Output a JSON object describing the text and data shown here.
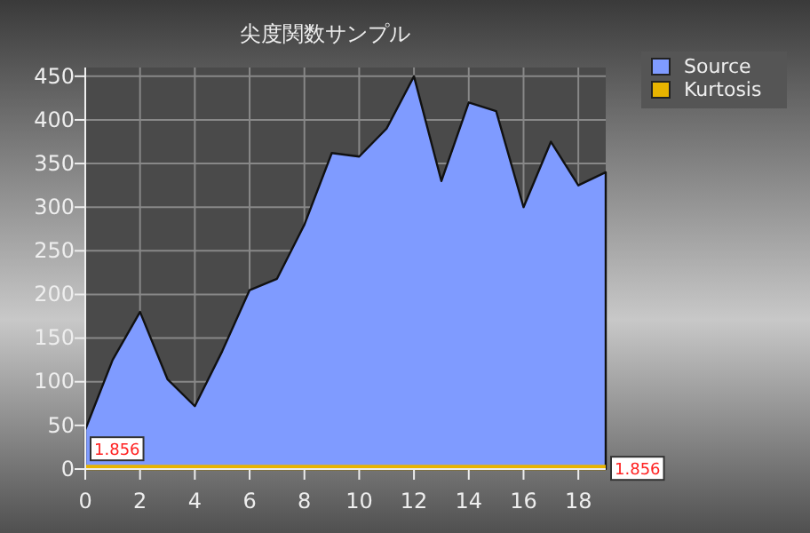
{
  "chart_data": {
    "type": "area",
    "title": "尖度関数サンプル",
    "x": [
      0,
      1,
      2,
      3,
      4,
      5,
      6,
      7,
      8,
      9,
      10,
      11,
      12,
      13,
      14,
      15,
      16,
      17,
      18,
      19
    ],
    "series": [
      {
        "name": "Source",
        "color": "#7f9bff",
        "values": [
          45,
          125,
          180,
          103,
          72,
          135,
          205,
          218,
          280,
          362,
          358,
          390,
          450,
          330,
          420,
          410,
          300,
          375,
          325,
          340
        ]
      },
      {
        "name": "Kurtosis",
        "type": "line",
        "color": "#e8b400",
        "values": [
          1.856,
          1.856,
          1.856,
          1.856,
          1.856,
          1.856,
          1.856,
          1.856,
          1.856,
          1.856,
          1.856,
          1.856,
          1.856,
          1.856,
          1.856,
          1.856,
          1.856,
          1.856,
          1.856,
          1.856
        ],
        "value_labels": [
          "1.856",
          null,
          null,
          null,
          null,
          null,
          null,
          null,
          null,
          null,
          null,
          null,
          null,
          null,
          null,
          null,
          null,
          null,
          null,
          "1.856"
        ]
      }
    ],
    "xlim": [
      0,
      19
    ],
    "xticks": [
      0,
      2,
      4,
      6,
      8,
      10,
      12,
      14,
      16,
      18
    ],
    "ylim": [
      0,
      460
    ],
    "yticks": [
      0,
      50,
      100,
      150,
      200,
      250,
      300,
      350,
      400,
      450
    ],
    "grid": true,
    "legend": "top right"
  }
}
